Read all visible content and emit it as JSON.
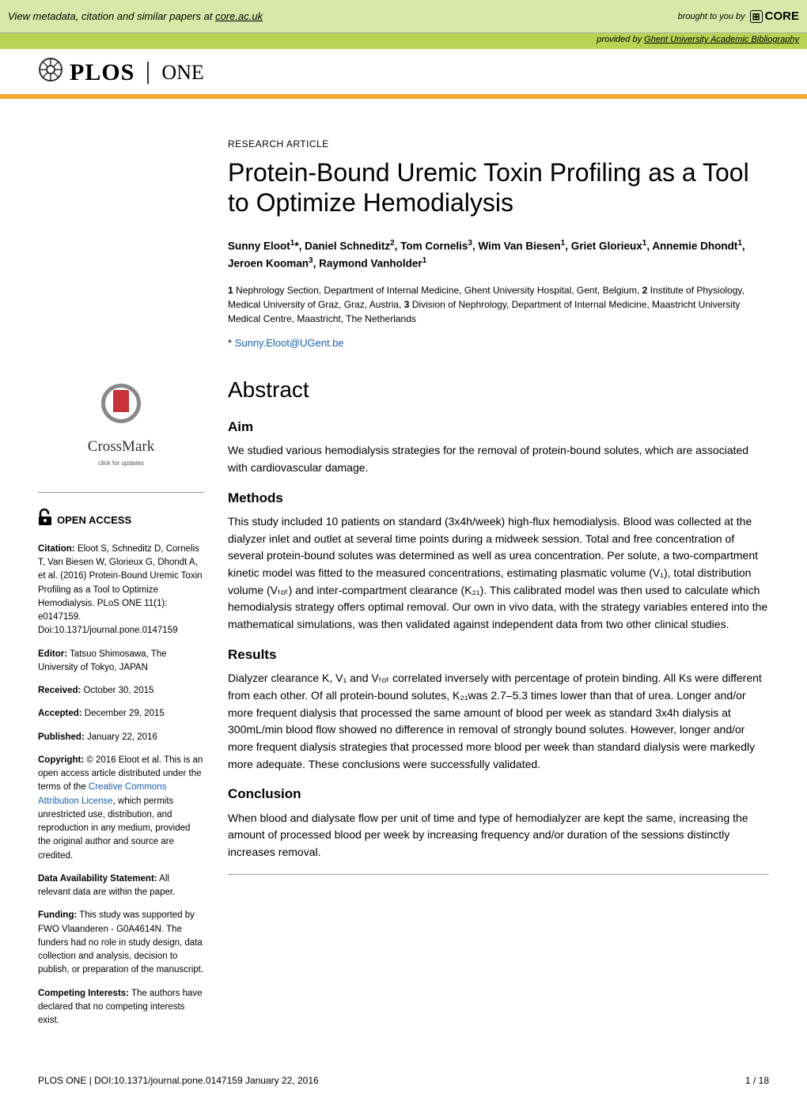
{
  "topbar": {
    "left_prefix": "View metadata, citation and similar papers at ",
    "left_link": "core.ac.uk",
    "brought": "brought to you by",
    "core": "CORE",
    "provided_prefix": "provided by ",
    "provided_link": "Ghent University Academic Bibliography"
  },
  "journal": {
    "plos": "PLOS",
    "one": "ONE"
  },
  "article": {
    "type": "RESEARCH ARTICLE",
    "title": "Protein-Bound Uremic Toxin Profiling as a Tool to Optimize Hemodialysis",
    "authors_html": "Sunny Eloot<sup>1</sup>*, Daniel Schneditz<sup>2</sup>, Tom Cornelis<sup>3</sup>, Wim Van Biesen<sup>1</sup>, Griet Glorieux<sup>1</sup>, Annemie Dhondt<sup>1</sup>, Jeroen Kooman<sup>3</sup>, Raymond Vanholder<sup>1</sup>",
    "affiliations": [
      "Nephrology Section, Department of Internal Medicine, Ghent University Hospital, Gent, Belgium,",
      "Institute of Physiology, Medical University of Graz, Graz, Austria,",
      "Division of Nephrology, Department of Internal Medicine, Maastricht University Medical Centre, Maastricht, The Netherlands"
    ],
    "corresp_mark": "*",
    "corresp_email": "Sunny.Eloot@UGent.be"
  },
  "abstract": {
    "heading": "Abstract",
    "sections": {
      "aim": {
        "h": "Aim",
        "p": "We studied various hemodialysis strategies for the removal of protein-bound solutes, which are associated with cardiovascular damage."
      },
      "methods": {
        "h": "Methods",
        "p": "This study included 10 patients on standard (3x4h/week) high-flux hemodialysis. Blood was collected at the dialyzer inlet and outlet at several time points during a midweek session. Total and free concentration of several protein-bound solutes was determined as well as urea concentration. Per solute, a two-compartment kinetic model was fitted to the measured concentrations, estimating plasmatic volume (V₁), total distribution volume (Vₜₒₜ) and inter-compartment clearance (K₂₁). This calibrated model was then used to calculate which hemodialysis strategy offers optimal removal. Our own in vivo data, with the strategy variables entered into the mathematical simulations, was then validated against independent data from two other clinical studies."
      },
      "results": {
        "h": "Results",
        "p": "Dialyzer clearance K, V₁ and Vₜₒₜ correlated inversely with percentage of protein binding. All Ks were different from each other. Of all protein-bound solutes, K₂₁was 2.7–5.3 times lower than that of urea. Longer and/or more frequent dialysis that processed the same amount of blood per week as standard 3x4h dialysis at 300mL/min blood flow showed no difference in removal of strongly bound solutes. However, longer and/or more frequent dialysis strategies that processed more blood per week than standard dialysis were markedly more adequate. These conclusions were successfully validated."
      },
      "conclusion": {
        "h": "Conclusion",
        "p": "When blood and dialysate flow per unit of time and type of hemodialyzer are kept the same, increasing the amount of processed blood per week by increasing frequency and/or duration of the sessions distinctly increases removal."
      }
    }
  },
  "sidebar": {
    "crossmark": {
      "label": "CrossMark",
      "sub": "click for updates"
    },
    "openaccess": "OPEN ACCESS",
    "citation": {
      "lbl": "Citation:",
      "text": " Eloot S, Schneditz D, Cornelis T, Van Biesen W, Glorieux G, Dhondt A, et al. (2016) Protein-Bound Uremic Toxin Profiling as a Tool to Optimize Hemodialysis. PLoS ONE 11(1): e0147159. Doi:10.1371/journal.pone.0147159"
    },
    "editor": {
      "lbl": "Editor:",
      "text": " Tatsuo Shimosawa, The University of Tokyo, JAPAN"
    },
    "received": {
      "lbl": "Received:",
      "text": " October 30, 2015"
    },
    "accepted": {
      "lbl": "Accepted:",
      "text": " December 29, 2015"
    },
    "published": {
      "lbl": "Published:",
      "text": " January 22, 2016"
    },
    "copyright": {
      "lbl": "Copyright:",
      "text1": " © 2016 Eloot et al. This is an open access article distributed under the terms of the ",
      "link": "Creative Commons Attribution License",
      "text2": ", which permits unrestricted use, distribution, and reproduction in any medium, provided the original author and source are credited."
    },
    "data": {
      "lbl": "Data Availability Statement:",
      "text": " All relevant data are within the paper."
    },
    "funding": {
      "lbl": "Funding:",
      "text": " This study was supported by FWO Vlaanderen - G0A4614N. The funders had no role in study design, data collection and analysis, decision to publish, or preparation of the manuscript."
    },
    "competing": {
      "lbl": "Competing Interests:",
      "text": " The authors have declared that no competing interests exist."
    }
  },
  "footer": {
    "left": "PLOS ONE | DOI:10.1371/journal.pone.0147159    January 22, 2016",
    "right": "1 / 18"
  },
  "colors": {
    "topbar_bg": "#d9e8a8",
    "provided_bg": "#b8d455",
    "rule": "#f4a532",
    "link": "#1a5fb4",
    "crossmark_book": "#c8333a"
  }
}
